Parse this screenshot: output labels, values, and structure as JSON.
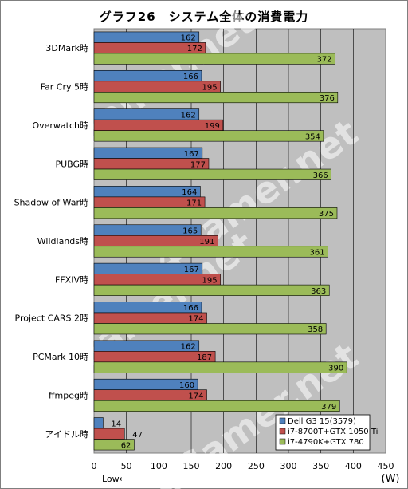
{
  "title": "グラフ26　システム全体の消費電力",
  "chart_data": {
    "type": "bar",
    "orientation": "horizontal",
    "categories": [
      "3DMark時",
      "Far Cry 5時",
      "Overwatch時",
      "PUBG時",
      "Shadow of War時",
      "Wildlands時",
      "FFXIV時",
      "Project CARS 2時",
      "PCMark 10時",
      "ffmpeg時",
      "アイドル時"
    ],
    "series": [
      {
        "name": "Dell G3 15(3579)",
        "color": "#4f81bd",
        "values": [
          162,
          166,
          162,
          167,
          164,
          165,
          167,
          166,
          162,
          160,
          14
        ]
      },
      {
        "name": "i7-8700T+GTX 1050 Ti",
        "color": "#c0504d",
        "values": [
          172,
          195,
          199,
          177,
          171,
          191,
          195,
          174,
          187,
          174,
          47
        ]
      },
      {
        "name": "i7-4790K+GTX 780",
        "color": "#9bbb59",
        "values": [
          372,
          376,
          354,
          366,
          375,
          361,
          363,
          358,
          390,
          379,
          62
        ]
      }
    ],
    "xlim": [
      0,
      450
    ],
    "xticks": [
      "0",
      "50",
      "100",
      "150",
      "200",
      "250",
      "300",
      "350",
      "400",
      "450"
    ],
    "xlabel": "(W)",
    "low_label": "Low←",
    "grid": true,
    "legend_position": "bottom-right",
    "watermark": "4Gamer.net"
  }
}
